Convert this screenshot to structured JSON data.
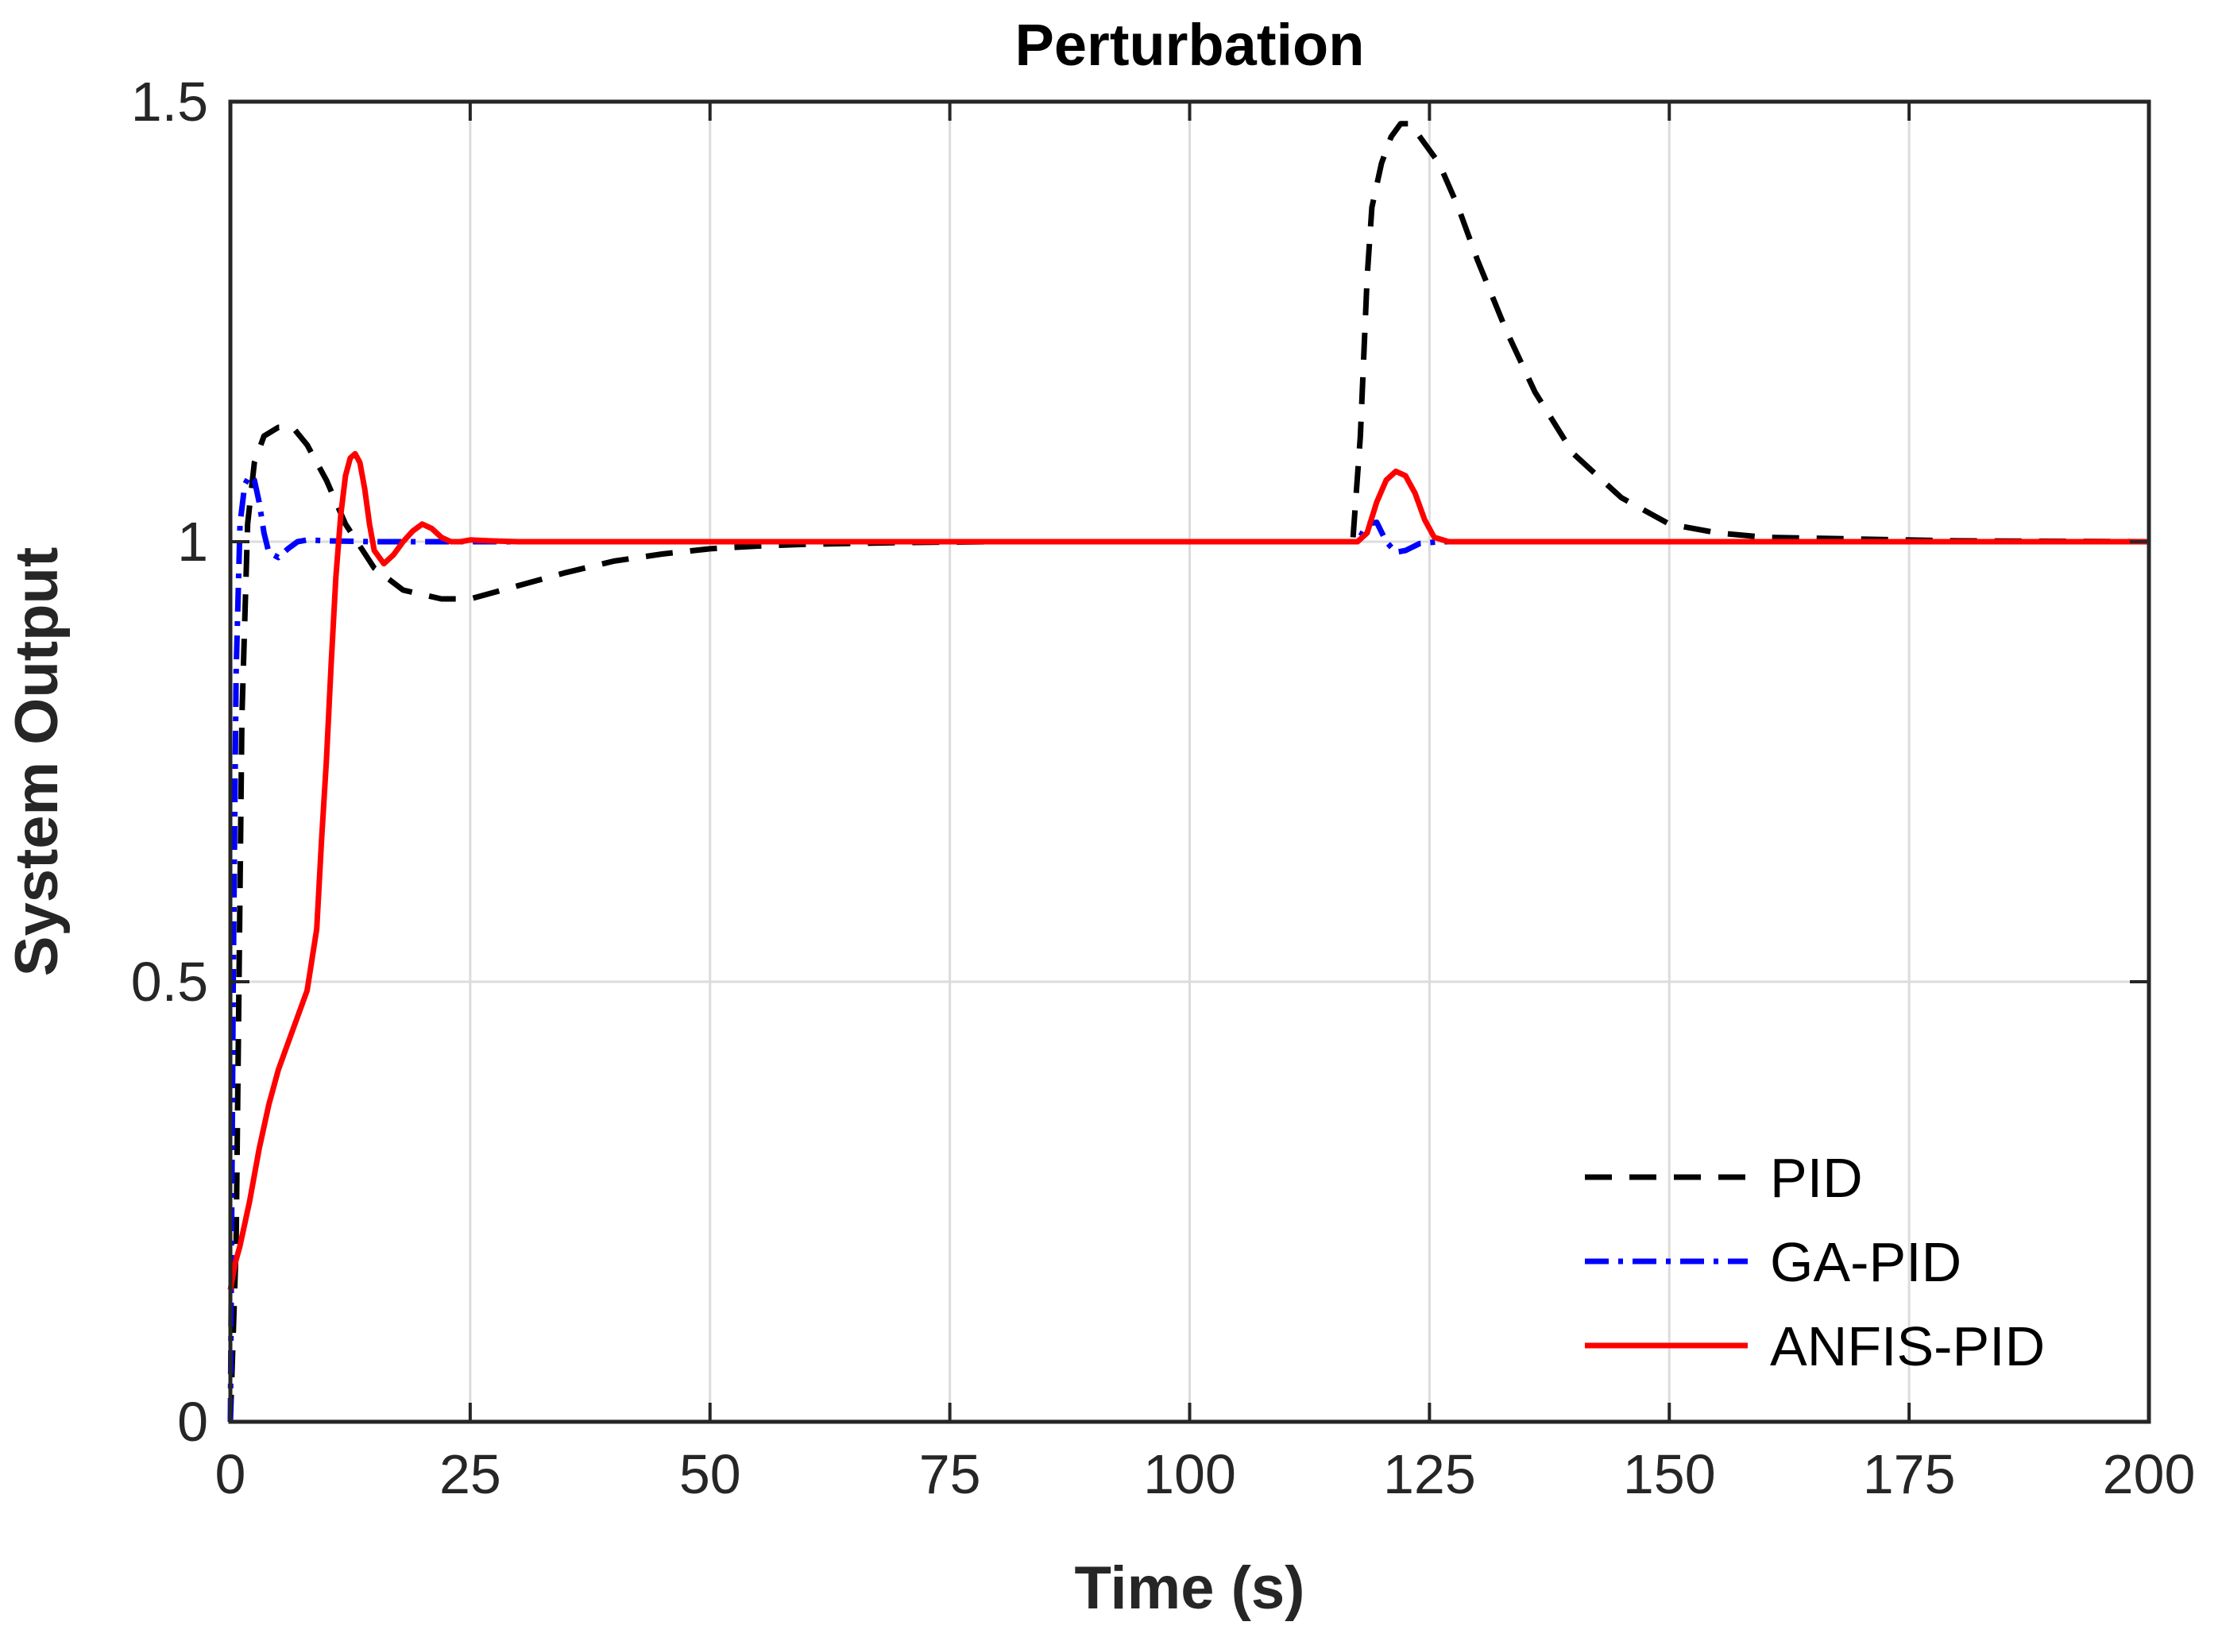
{
  "chart_data": {
    "type": "line",
    "title": "Perturbation",
    "xlabel": "Time (s)",
    "ylabel": "System Output",
    "xlim": [
      0,
      200
    ],
    "ylim": [
      0,
      1.5
    ],
    "xticks": [
      0,
      25,
      50,
      75,
      100,
      125,
      150,
      175,
      200
    ],
    "yticks": [
      0,
      0.5,
      1,
      1.5
    ],
    "xtick_labels": [
      "0",
      "25",
      "50",
      "75",
      "100",
      "125",
      "150",
      "175",
      "200"
    ],
    "ytick_labels": [
      "0",
      "0.5",
      "1",
      "1.5"
    ],
    "grid": true,
    "legend_position": "bottom-right",
    "series": [
      {
        "name": "PID",
        "color": "#000000",
        "dash": "dashed",
        "x": [
          0,
          0.6,
          1.2,
          1.8,
          2.5,
          3.5,
          5,
          6.5,
          8,
          10,
          12,
          15,
          18,
          20,
          22,
          25,
          30,
          35,
          40,
          45,
          50,
          55,
          60,
          70,
          80,
          100,
          117,
          117.8,
          118.5,
          119,
          120,
          121,
          122,
          123,
          124,
          126,
          128,
          130,
          133,
          136,
          140,
          145,
          150,
          155,
          160,
          170,
          180,
          200
        ],
        "y": [
          0,
          0.2,
          0.8,
          1.02,
          1.09,
          1.12,
          1.13,
          1.13,
          1.11,
          1.07,
          1.02,
          0.97,
          0.945,
          0.94,
          0.935,
          0.935,
          0.95,
          0.965,
          0.978,
          0.986,
          0.992,
          0.995,
          0.997,
          0.999,
          1.0,
          1.0,
          1.0,
          1.12,
          1.3,
          1.38,
          1.43,
          1.46,
          1.475,
          1.475,
          1.46,
          1.43,
          1.38,
          1.32,
          1.24,
          1.17,
          1.1,
          1.05,
          1.02,
          1.01,
          1.005,
          1.003,
          1.001,
          1.0
        ]
      },
      {
        "name": "GA-PID",
        "color": "#0000ff",
        "dash": "dashdot",
        "x": [
          0,
          0.3,
          0.6,
          1,
          1.5,
          2,
          2.5,
          3,
          3.5,
          4,
          5,
          6,
          7,
          8,
          10,
          15,
          20,
          30,
          60,
          100,
          117.5,
          118.5,
          119.5,
          120.5,
          121.5,
          122.5,
          124,
          126,
          130,
          160,
          200
        ],
        "y": [
          0,
          0.5,
          0.85,
          1.02,
          1.065,
          1.075,
          1.07,
          1.045,
          1.01,
          0.988,
          0.982,
          0.992,
          1.0,
          1.002,
          1.001,
          1.0,
          1.0,
          1.0,
          1.0,
          1.0,
          1.0,
          1.02,
          1.022,
          1.0,
          0.988,
          0.99,
          0.998,
          1.0,
          1.0,
          1.0,
          1.0
        ]
      },
      {
        "name": "ANFIS-PID",
        "color": "#ff0000",
        "dash": "solid",
        "x": [
          0,
          0.5,
          1,
          2,
          3,
          4,
          5,
          6,
          7,
          8,
          9,
          9.5,
          10,
          10.5,
          11,
          11.5,
          12,
          12.5,
          13,
          13.5,
          14,
          14.5,
          15,
          16,
          17,
          18,
          19,
          20,
          21,
          22,
          23,
          24,
          25,
          27,
          30,
          40,
          60,
          100,
          117.5,
          118.5,
          119.5,
          120.5,
          121.5,
          122.5,
          123.5,
          124.5,
          125.5,
          127,
          130,
          160,
          200
        ],
        "y": [
          0.15,
          0.18,
          0.2,
          0.25,
          0.31,
          0.36,
          0.4,
          0.43,
          0.46,
          0.49,
          0.56,
          0.66,
          0.75,
          0.86,
          0.96,
          1.03,
          1.075,
          1.095,
          1.1,
          1.09,
          1.06,
          1.02,
          0.99,
          0.975,
          0.985,
          1.0,
          1.012,
          1.02,
          1.015,
          1.005,
          1.0,
          1.0,
          1.002,
          1.001,
          1.0,
          1.0,
          1.0,
          1.0,
          1.0,
          1.01,
          1.045,
          1.07,
          1.08,
          1.075,
          1.055,
          1.025,
          1.005,
          1.0,
          1.0,
          1.0,
          1.0
        ]
      }
    ]
  }
}
